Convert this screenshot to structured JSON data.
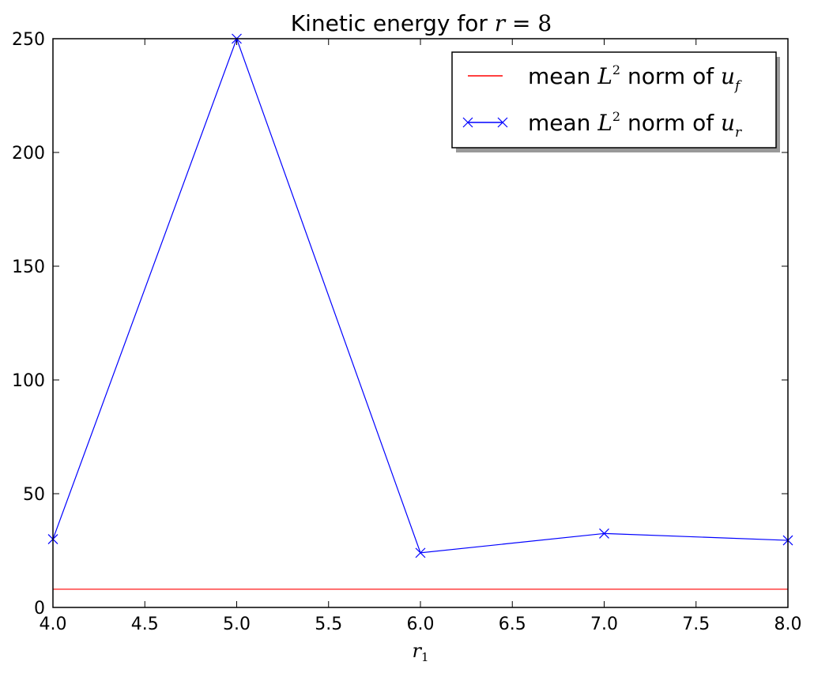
{
  "chart_data": {
    "type": "line",
    "title": {
      "prefix": "Kinetic energy for ",
      "math_var": "r",
      "math_eq": " = ",
      "math_val": "8"
    },
    "xlabel": {
      "base": "r",
      "sub": "1"
    },
    "ylabel": "",
    "xlim": [
      4.0,
      8.0
    ],
    "ylim": [
      0,
      250
    ],
    "x_ticks": [
      "4.0",
      "4.5",
      "5.0",
      "5.5",
      "6.0",
      "6.5",
      "7.0",
      "7.5",
      "8.0"
    ],
    "y_ticks": [
      "0",
      "50",
      "100",
      "150",
      "200",
      "250"
    ],
    "legend_position": "top-right",
    "series": [
      {
        "id": "uf",
        "color": "#ff0000",
        "marker": "none",
        "x": [
          4.0,
          8.0
        ],
        "y": [
          8,
          8
        ],
        "legend": {
          "prefix": "mean ",
          "L": "L",
          "sup": "2",
          "mid": "  norm of ",
          "u": "u",
          "sub": "f"
        }
      },
      {
        "id": "ur",
        "color": "#0000ff",
        "marker": "x",
        "x": [
          4.0,
          5.0,
          6.0,
          7.0,
          8.0
        ],
        "y": [
          30,
          250,
          24,
          32.5,
          29.5
        ],
        "legend": {
          "prefix": "mean ",
          "L": "L",
          "sup": "2",
          "mid": "  norm of ",
          "u": "u",
          "sub": "r"
        }
      }
    ]
  }
}
